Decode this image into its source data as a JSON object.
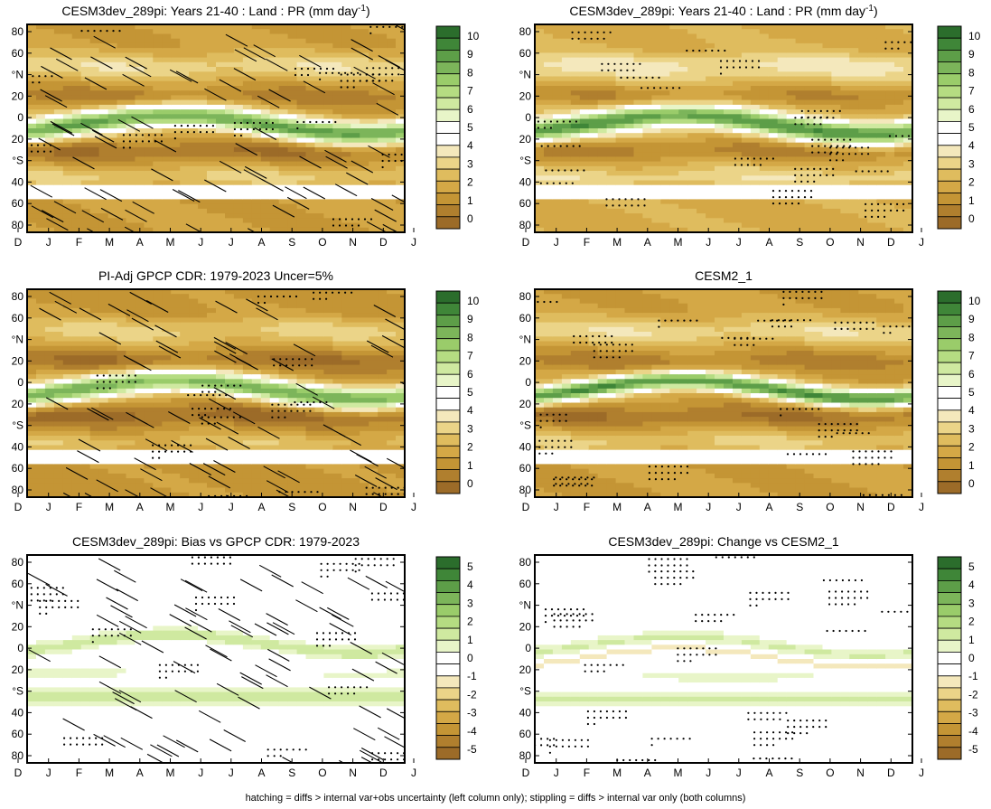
{
  "figure": {
    "caption": "hatching = diffs > internal var+obs uncertainty (left column only); stippling = diffs > internal var only (both columns)"
  },
  "chart_data": [
    {
      "type": "heatmap",
      "title": "CESM3dev_289pi: Years 21-40 : Land : PR (mm day",
      "title_sup": "-1",
      "title_suffix": ")",
      "variable": "PR",
      "units": "mm day-1",
      "x_ticks": [
        "D",
        "J",
        "F",
        "M",
        "A",
        "M",
        "J",
        "J",
        "A",
        "S",
        "O",
        "N",
        "D",
        "J"
      ],
      "y_ticks": [
        "80",
        "60",
        "°N",
        "20",
        "0",
        "20",
        "°S",
        "40",
        "60",
        "80"
      ],
      "y_range": [
        -90,
        90
      ],
      "colorbar": {
        "ticks": [
          "10",
          "9",
          "8",
          "7",
          "6",
          "5",
          "4",
          "3",
          "2",
          "1",
          "0"
        ],
        "range": [
          0,
          10
        ]
      },
      "overlay": "hatching and stippling",
      "field": "absolute"
    },
    {
      "type": "heatmap",
      "title": "CESM3dev_289pi: Years 21-40 : Land : PR (mm day",
      "title_sup": "-1",
      "title_suffix": ")",
      "variable": "PR",
      "units": "mm day-1",
      "x_ticks": [
        "D",
        "J",
        "F",
        "M",
        "A",
        "M",
        "J",
        "J",
        "A",
        "S",
        "O",
        "N",
        "D",
        "J"
      ],
      "y_ticks": [
        "80",
        "60",
        "°N",
        "20",
        "0",
        "20",
        "°S",
        "40",
        "60",
        "80"
      ],
      "y_range": [
        -90,
        90
      ],
      "colorbar": {
        "ticks": [
          "10",
          "9",
          "8",
          "7",
          "6",
          "5",
          "4",
          "3",
          "2",
          "1",
          "0"
        ],
        "range": [
          0,
          10
        ]
      },
      "overlay": "stippling",
      "field": "absolute"
    },
    {
      "type": "heatmap",
      "title": "PI-Adj GPCP CDR: 1979-2023 Uncer=5%",
      "title_sup": "",
      "title_suffix": "",
      "variable": "PR",
      "units": "mm day-1",
      "x_ticks": [
        "D",
        "J",
        "F",
        "M",
        "A",
        "M",
        "J",
        "J",
        "A",
        "S",
        "O",
        "N",
        "D",
        "J"
      ],
      "y_ticks": [
        "80",
        "60",
        "°N",
        "20",
        "0",
        "20",
        "°S",
        "40",
        "60",
        "80"
      ],
      "y_range": [
        -90,
        90
      ],
      "colorbar": {
        "ticks": [
          "10",
          "9",
          "8",
          "7",
          "6",
          "5",
          "4",
          "3",
          "2",
          "1",
          "0"
        ],
        "range": [
          0,
          10
        ]
      },
      "overlay": "hatching and stippling",
      "field": "absolute"
    },
    {
      "type": "heatmap",
      "title": "CESM2_1",
      "title_sup": "",
      "title_suffix": "",
      "variable": "PR",
      "units": "mm day-1",
      "x_ticks": [
        "D",
        "J",
        "F",
        "M",
        "A",
        "M",
        "J",
        "J",
        "A",
        "S",
        "O",
        "N",
        "D",
        "J"
      ],
      "y_ticks": [
        "80",
        "60",
        "°N",
        "20",
        "0",
        "20",
        "°S",
        "40",
        "60",
        "80"
      ],
      "y_range": [
        -90,
        90
      ],
      "colorbar": {
        "ticks": [
          "10",
          "9",
          "8",
          "7",
          "6",
          "5",
          "4",
          "3",
          "2",
          "1",
          "0"
        ],
        "range": [
          0,
          10
        ]
      },
      "overlay": "stippling",
      "field": "absolute"
    },
    {
      "type": "heatmap",
      "title": "CESM3dev_289pi: Bias vs GPCP CDR: 1979-2023",
      "title_sup": "",
      "title_suffix": "",
      "variable": "PR",
      "units": "mm day-1",
      "x_ticks": [
        "D",
        "J",
        "F",
        "M",
        "A",
        "M",
        "J",
        "J",
        "A",
        "S",
        "O",
        "N",
        "D",
        "J"
      ],
      "y_ticks": [
        "80",
        "60",
        "°N",
        "20",
        "0",
        "20",
        "°S",
        "40",
        "60",
        "80"
      ],
      "y_range": [
        -90,
        90
      ],
      "colorbar": {
        "ticks": [
          "5",
          "4",
          "3",
          "2",
          "1",
          "0",
          "-1",
          "-2",
          "-3",
          "-4",
          "-5"
        ],
        "range": [
          -5,
          5
        ]
      },
      "overlay": "hatching and stippling",
      "field": "difference"
    },
    {
      "type": "heatmap",
      "title": "CESM3dev_289pi: Change vs CESM2_1",
      "title_sup": "",
      "title_suffix": "",
      "variable": "PR",
      "units": "mm day-1",
      "x_ticks": [
        "D",
        "J",
        "F",
        "M",
        "A",
        "M",
        "J",
        "J",
        "A",
        "S",
        "O",
        "N",
        "D",
        "J"
      ],
      "y_ticks": [
        "80",
        "60",
        "°N",
        "20",
        "0",
        "20",
        "°S",
        "40",
        "60",
        "80"
      ],
      "y_range": [
        -90,
        90
      ],
      "colorbar": {
        "ticks": [
          "5",
          "4",
          "3",
          "2",
          "1",
          "0",
          "-1",
          "-2",
          "-3",
          "-4",
          "-5"
        ],
        "range": [
          -5,
          5
        ]
      },
      "overlay": "stippling",
      "field": "difference"
    }
  ],
  "colors": {
    "scale": [
      "#9c6b28",
      "#b07f2e",
      "#c49535",
      "#d4a846",
      "#dfbc5e",
      "#ebd488",
      "#f4e8bc",
      "#ffffff",
      "#ffffff",
      "#e8f5c8",
      "#cfe9a0",
      "#b5dc82",
      "#9acc6a",
      "#7cb55a",
      "#5d9e48",
      "#3f8638",
      "#2b6d2c"
    ],
    "frame": "#000000"
  }
}
